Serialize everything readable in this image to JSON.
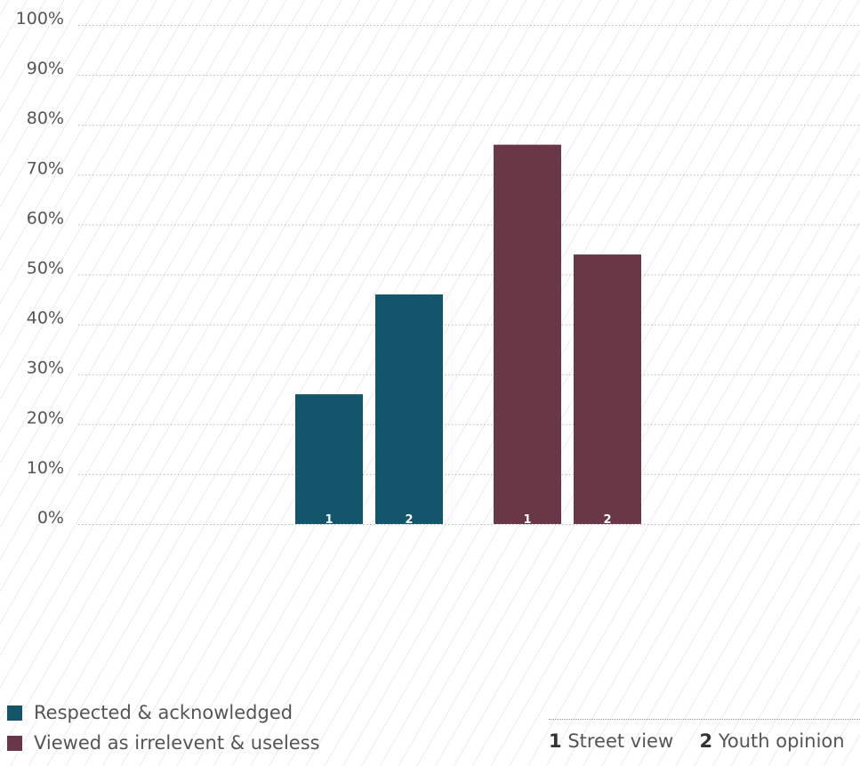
{
  "chart_data": {
    "type": "bar",
    "categories": [
      "Respected & acknowledged",
      "Viewed as irrelevent & useless"
    ],
    "bar_labels": [
      "1",
      "2"
    ],
    "series": [
      {
        "name": "Street view",
        "values": [
          26,
          76
        ]
      },
      {
        "name": "Youth opinion",
        "values": [
          46,
          54
        ]
      }
    ],
    "ylim": [
      0,
      100
    ],
    "yticks": [
      "0%",
      "10%",
      "20%",
      "30%",
      "40%",
      "50%",
      "60%",
      "70%",
      "80%",
      "90%",
      "100%"
    ],
    "grid": true,
    "legend_placement": "bottom-left",
    "colors": [
      "#13566b",
      "#6a3746"
    ]
  },
  "legend": {
    "items": [
      {
        "label": "Respected & acknowledged",
        "color": "#13566b"
      },
      {
        "label": "Viewed as irrelevent & useless",
        "color": "#6a3746"
      }
    ]
  },
  "key": {
    "entries": [
      {
        "num": "1",
        "label": "Street view"
      },
      {
        "num": "2",
        "label": "Youth opinion"
      }
    ]
  }
}
